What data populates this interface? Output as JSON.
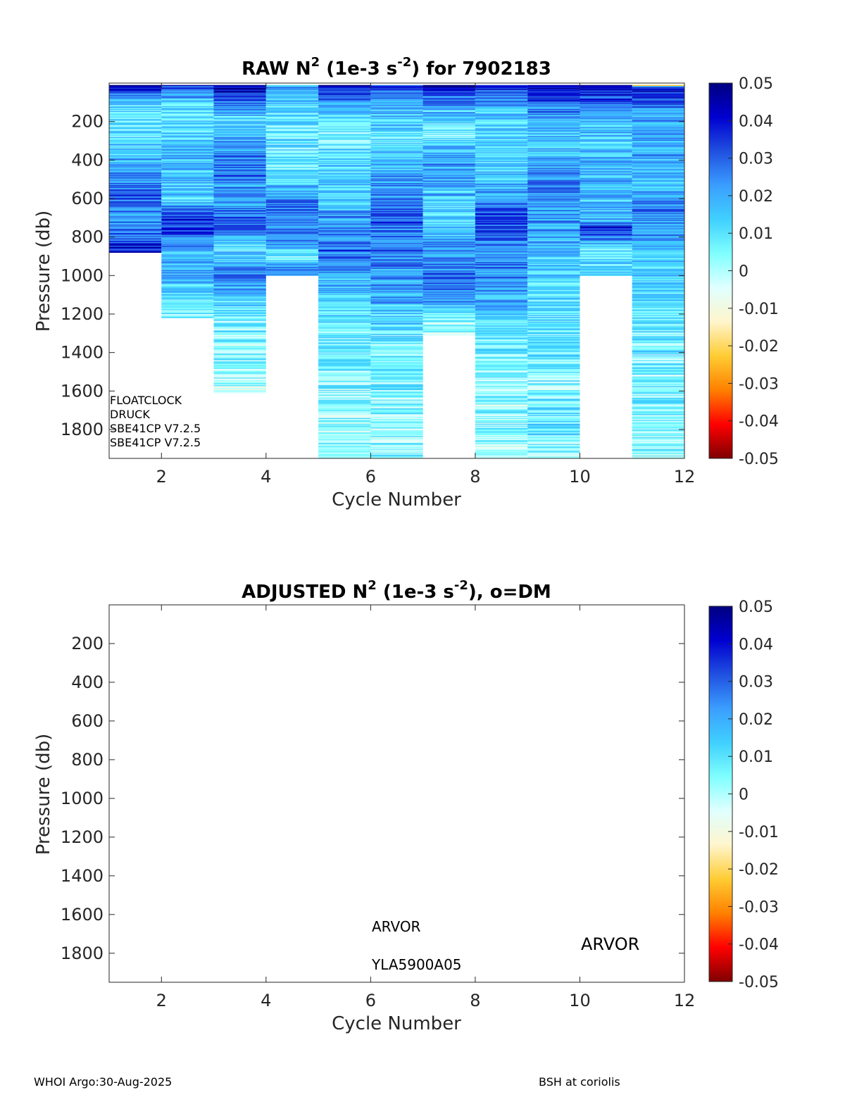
{
  "figure": {
    "footer_left": "WHOI Argo:30-Aug-2025",
    "footer_right": "BSH at coriolis"
  },
  "colors": {
    "colormap_stops": [
      "#7f0000",
      "#ff0000",
      "#ff8000",
      "#ffcc33",
      "#fff5cc",
      "#e0ffff",
      "#7fffff",
      "#40d0ff",
      "#3a9eff",
      "#2050e0",
      "#0000d0",
      "#000080"
    ],
    "axis": "#262626",
    "background": "#ffffff"
  },
  "chart_data": [
    {
      "type": "heatmap",
      "title_parts": [
        "RAW N",
        "2",
        " (1e-3 s",
        "-2",
        ") for 7902183"
      ],
      "xlabel": "Cycle Number",
      "ylabel": "Pressure (db)",
      "xlim": [
        1,
        12
      ],
      "ylim": [
        0,
        1950
      ],
      "y_reversed": true,
      "xticks": [
        2,
        4,
        6,
        8,
        10,
        12
      ],
      "yticks": [
        200,
        400,
        600,
        800,
        1000,
        1200,
        1400,
        1600,
        1800
      ],
      "colorbar": {
        "clim": [
          -0.05,
          0.05
        ],
        "ticks": [
          "0.05",
          "0.04",
          "0.03",
          "0.02",
          "0.01",
          "0",
          "-0.01",
          "-0.02",
          "-0.03",
          "-0.04",
          "-0.05"
        ]
      },
      "annotations": [
        "FLOATCLOCK",
        "DRUCK",
        "SBE41CP V7.2.5",
        "SBE41CP V7.2.5"
      ],
      "columns": [
        {
          "cycle": 1,
          "pmin": 10,
          "pmax": 880,
          "profile": [
            [
              10,
              0.045
            ],
            [
              100,
              0.012
            ],
            [
              200,
              0.008
            ],
            [
              300,
              0.01
            ],
            [
              450,
              0.022
            ],
            [
              600,
              0.028
            ],
            [
              700,
              0.025
            ],
            [
              800,
              0.03
            ],
            [
              880,
              0.04
            ]
          ]
        },
        {
          "cycle": 2,
          "pmin": 10,
          "pmax": 1220,
          "profile": [
            [
              10,
              0.035
            ],
            [
              100,
              0.015
            ],
            [
              200,
              0.01
            ],
            [
              400,
              0.018
            ],
            [
              600,
              0.015
            ],
            [
              700,
              0.035
            ],
            [
              800,
              0.03
            ],
            [
              900,
              0.015
            ],
            [
              1000,
              0.02
            ],
            [
              1100,
              0.01
            ],
            [
              1220,
              0.005
            ]
          ]
        },
        {
          "cycle": 3,
          "pmin": 10,
          "pmax": 1610,
          "profile": [
            [
              10,
              0.045
            ],
            [
              200,
              0.01
            ],
            [
              400,
              0.028
            ],
            [
              600,
              0.02
            ],
            [
              700,
              0.032
            ],
            [
              850,
              0.01
            ],
            [
              1000,
              0.025
            ],
            [
              1200,
              0.008
            ],
            [
              1350,
              0.002
            ],
            [
              1500,
              0.001
            ],
            [
              1610,
              0.0
            ]
          ]
        },
        {
          "cycle": 4,
          "pmin": 10,
          "pmax": 1000,
          "profile": [
            [
              10,
              0.02
            ],
            [
              150,
              0.01
            ],
            [
              300,
              0.008
            ],
            [
              500,
              0.012
            ],
            [
              650,
              0.028
            ],
            [
              800,
              0.025
            ],
            [
              900,
              0.008
            ],
            [
              1000,
              0.03
            ]
          ]
        },
        {
          "cycle": 5,
          "pmin": 10,
          "pmax": 1950,
          "profile": [
            [
              10,
              0.045
            ],
            [
              100,
              0.02
            ],
            [
              250,
              0.006
            ],
            [
              400,
              0.012
            ],
            [
              600,
              0.015
            ],
            [
              750,
              0.025
            ],
            [
              900,
              0.03
            ],
            [
              1100,
              0.015
            ],
            [
              1300,
              0.008
            ],
            [
              1600,
              0.003
            ],
            [
              1950,
              0.001
            ]
          ]
        },
        {
          "cycle": 6,
          "pmin": 10,
          "pmax": 1950,
          "profile": [
            [
              10,
              0.035
            ],
            [
              100,
              0.02
            ],
            [
              300,
              0.01
            ],
            [
              500,
              0.02
            ],
            [
              700,
              0.03
            ],
            [
              900,
              0.025
            ],
            [
              1100,
              0.02
            ],
            [
              1300,
              0.008
            ],
            [
              1600,
              0.004
            ],
            [
              1950,
              0.002
            ]
          ]
        },
        {
          "cycle": 7,
          "pmin": 10,
          "pmax": 1310,
          "profile": [
            [
              10,
              0.045
            ],
            [
              150,
              0.015
            ],
            [
              250,
              0.004
            ],
            [
              400,
              0.022
            ],
            [
              700,
              0.012
            ],
            [
              900,
              0.025
            ],
            [
              1100,
              0.025
            ],
            [
              1250,
              0.003
            ],
            [
              1310,
              0.002
            ]
          ]
        },
        {
          "cycle": 8,
          "pmin": 10,
          "pmax": 1950,
          "profile": [
            [
              10,
              0.04
            ],
            [
              150,
              0.015
            ],
            [
              400,
              0.012
            ],
            [
              600,
              0.022
            ],
            [
              700,
              0.035
            ],
            [
              900,
              0.025
            ],
            [
              1100,
              0.02
            ],
            [
              1300,
              0.008
            ],
            [
              1600,
              0.002
            ],
            [
              1950,
              0.001
            ]
          ]
        },
        {
          "cycle": 9,
          "pmin": 10,
          "pmax": 1950,
          "profile": [
            [
              10,
              0.045
            ],
            [
              200,
              0.015
            ],
            [
              400,
              0.02
            ],
            [
              600,
              0.025
            ],
            [
              800,
              0.02
            ],
            [
              1000,
              0.012
            ],
            [
              1300,
              0.008
            ],
            [
              1600,
              0.004
            ],
            [
              1700,
              0.01
            ],
            [
              1950,
              0.002
            ]
          ]
        },
        {
          "cycle": 10,
          "pmin": 10,
          "pmax": 1000,
          "profile": [
            [
              10,
              0.045
            ],
            [
              150,
              0.02
            ],
            [
              300,
              0.015
            ],
            [
              500,
              0.02
            ],
            [
              700,
              0.015
            ],
            [
              750,
              0.04
            ],
            [
              850,
              0.012
            ],
            [
              1000,
              0.01
            ]
          ]
        },
        {
          "cycle": 11,
          "pmin": 10,
          "pmax": 1950,
          "profile": [
            [
              10,
              -0.02
            ],
            [
              20,
              0.045
            ],
            [
              150,
              0.018
            ],
            [
              300,
              0.02
            ],
            [
              500,
              0.015
            ],
            [
              650,
              0.025
            ],
            [
              800,
              0.02
            ],
            [
              1000,
              0.012
            ],
            [
              1300,
              0.008
            ],
            [
              1600,
              0.004
            ],
            [
              1950,
              0.002
            ]
          ]
        }
      ]
    },
    {
      "type": "heatmap",
      "title_parts": [
        "ADJUSTED N",
        "2",
        " (1e-3 s",
        "-2",
        "), o=DM"
      ],
      "xlabel": "Cycle Number",
      "ylabel": "Pressure (db)",
      "xlim": [
        1,
        12
      ],
      "ylim": [
        0,
        1950
      ],
      "y_reversed": true,
      "xticks": [
        2,
        4,
        6,
        8,
        10,
        12
      ],
      "yticks": [
        200,
        400,
        600,
        800,
        1000,
        1200,
        1400,
        1600,
        1800
      ],
      "colorbar": {
        "clim": [
          -0.05,
          0.05
        ],
        "ticks": [
          "0.05",
          "0.04",
          "0.03",
          "0.02",
          "0.01",
          "0",
          "-0.01",
          "-0.02",
          "-0.03",
          "-0.04",
          "-0.05"
        ]
      },
      "annotations": [
        "ARVOR",
        "YLA5900A05",
        "ARVOR"
      ],
      "columns": []
    }
  ]
}
